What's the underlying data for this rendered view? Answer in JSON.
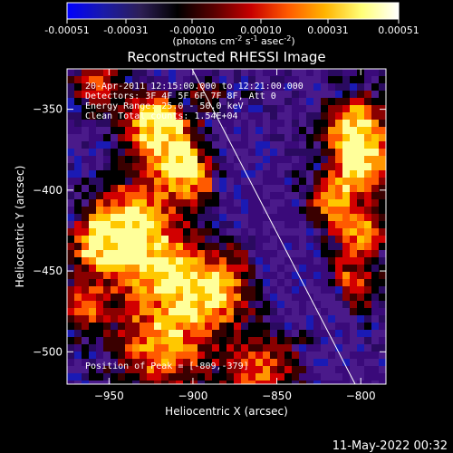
{
  "colorbar": {
    "gradient": [
      "#0000ff",
      "#1a1aa8",
      "#2d1f55",
      "#000000",
      "#5a0000",
      "#c80000",
      "#ff5a00",
      "#ffb400",
      "#ffff78",
      "#ffffff"
    ],
    "ticks": [
      "-0.00051",
      "-0.00031",
      "-0.00010",
      "0.00010",
      "0.00031",
      "0.00051"
    ],
    "units_main": "(photons cm",
    "units_exp1": "-2",
    "units_mid": " s",
    "units_exp2": "-1",
    "units_end": " asec",
    "units_exp3": "-2",
    "units_close": ")"
  },
  "plot": {
    "title": "Reconstructed RHESSI Image",
    "x_label": "Heliocentric X (arcsec)",
    "y_label": "Heliocentric Y (arcsec)",
    "x_ticks": [
      "-950",
      "-900",
      "-850",
      "-800"
    ],
    "y_ticks": [
      "-350",
      "-400",
      "-450",
      "-500"
    ],
    "x_range": [
      -975,
      -785
    ],
    "y_range": [
      -325,
      -520
    ],
    "annotations": [
      "20-Apr-2011 12:15:00.000 to 12:21:00.000",
      "Detectors: 3F 4F 5F 6F 7F 8F, Att 0",
      "Energy Range: 25.0 - 50.0 keV",
      "Clean    Total counts: 1.54E+04"
    ],
    "peak_label": "Position of Peak = [-809,-379]"
  },
  "footer": {
    "timestamp": "11-May-2022 00:32"
  },
  "colors": {
    "background": "#000000",
    "limb": "#ffffff"
  }
}
